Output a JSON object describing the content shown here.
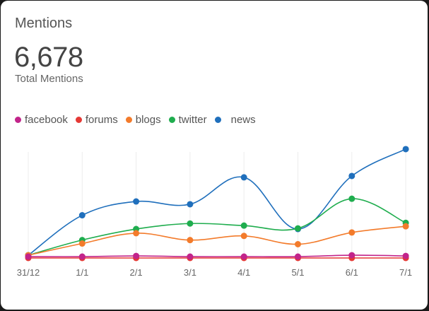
{
  "card": {
    "title": "Mentions",
    "total": "6,678",
    "total_label": "Total Mentions"
  },
  "chart_data": {
    "type": "line",
    "categories": [
      "31/12",
      "1/1",
      "2/1",
      "3/1",
      "4/1",
      "5/1",
      "6/1",
      "7/1"
    ],
    "series": [
      {
        "name": "facebook",
        "color": "#c2248a",
        "values": [
          2,
          2,
          3,
          2,
          2,
          2,
          4,
          3
        ]
      },
      {
        "name": "forums",
        "color": "#e53935",
        "values": [
          0,
          0,
          0,
          0,
          0,
          0,
          0,
          0
        ]
      },
      {
        "name": "blogs",
        "color": "#f37b2b",
        "values": [
          4,
          21,
          36,
          26,
          32,
          20,
          37,
          46
        ]
      },
      {
        "name": "twitter",
        "color": "#1fad4e",
        "values": [
          4,
          26,
          42,
          50,
          47,
          43,
          86,
          51
        ]
      },
      {
        "name": "news",
        "color": "#1f6fbc",
        "values": [
          4,
          62,
          82,
          78,
          117,
          42,
          119,
          158
        ]
      }
    ],
    "ylim": [
      0,
      160
    ],
    "grid": "vertical",
    "legend": "top-left"
  }
}
